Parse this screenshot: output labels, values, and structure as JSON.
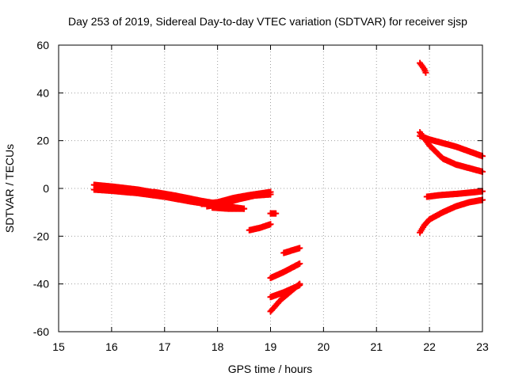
{
  "chart_data": {
    "type": "scatter",
    "title": "Day 253 of 2019, Sidereal Day-to-day VTEC variation (SDTVAR) for receiver sjsp",
    "xlabel": "GPS time / hours",
    "ylabel": "SDTVAR / TECUs",
    "xlim": [
      15,
      23
    ],
    "ylim": [
      -60,
      60
    ],
    "xticks": [
      15,
      16,
      17,
      18,
      19,
      20,
      21,
      22,
      23
    ],
    "yticks": [
      -60,
      -40,
      -20,
      0,
      20,
      40,
      60
    ],
    "grid": true,
    "legend": "none",
    "marker": "plus",
    "color": "#ff0000",
    "tracks": [
      [
        [
          15.67,
          1.5
        ],
        [
          16.0,
          0.8
        ],
        [
          16.5,
          -0.5
        ],
        [
          17.0,
          -2.5
        ],
        [
          17.5,
          -4.5
        ],
        [
          17.9,
          -6.0
        ]
      ],
      [
        [
          15.67,
          -0.5
        ],
        [
          16.0,
          -1.0
        ],
        [
          16.5,
          -2.0
        ],
        [
          17.0,
          -3.5
        ],
        [
          17.5,
          -5.5
        ],
        [
          18.0,
          -7.2
        ],
        [
          18.15,
          -7.8
        ]
      ],
      [
        [
          16.8,
          -1.5
        ],
        [
          17.2,
          -3.0
        ],
        [
          17.6,
          -4.8
        ],
        [
          18.0,
          -7.0
        ],
        [
          18.5,
          -8.5
        ]
      ],
      [
        [
          17.9,
          -8.0
        ],
        [
          18.2,
          -8.5
        ],
        [
          18.5,
          -8.5
        ]
      ],
      [
        [
          17.7,
          -6.5
        ],
        [
          18.0,
          -5.8
        ],
        [
          18.3,
          -4.0
        ],
        [
          18.6,
          -2.8
        ],
        [
          19.0,
          -1.5
        ]
      ],
      [
        [
          17.8,
          -7.5
        ],
        [
          18.1,
          -6.5
        ],
        [
          18.4,
          -4.5
        ],
        [
          18.7,
          -3.0
        ],
        [
          19.0,
          -2.5
        ]
      ],
      [
        [
          18.6,
          -17.5
        ],
        [
          18.8,
          -16.5
        ],
        [
          19.0,
          -15.0
        ]
      ],
      [
        [
          19.0,
          -10.5
        ],
        [
          19.1,
          -10.5
        ]
      ],
      [
        [
          19.0,
          -37.5
        ],
        [
          19.25,
          -35.0
        ],
        [
          19.55,
          -31.5
        ]
      ],
      [
        [
          19.0,
          -45.5
        ],
        [
          19.25,
          -43.5
        ],
        [
          19.55,
          -40.5
        ]
      ],
      [
        [
          19.0,
          -51.5
        ],
        [
          19.2,
          -46.5
        ],
        [
          19.55,
          -40.0
        ]
      ],
      [
        [
          19.25,
          -27.0
        ],
        [
          19.4,
          -26.0
        ],
        [
          19.55,
          -25.0
        ]
      ],
      [
        [
          21.82,
          52.5
        ],
        [
          21.9,
          50.0
        ],
        [
          21.93,
          48.5
        ]
      ],
      [
        [
          21.82,
          22.0
        ],
        [
          22.0,
          20.5
        ],
        [
          22.5,
          17.5
        ],
        [
          23.0,
          13.5
        ]
      ],
      [
        [
          21.82,
          23.5
        ],
        [
          22.0,
          18.0
        ],
        [
          22.25,
          12.5
        ],
        [
          22.5,
          10.0
        ],
        [
          23.0,
          7.0
        ]
      ],
      [
        [
          21.82,
          -18.5
        ],
        [
          21.9,
          -15.5
        ],
        [
          22.0,
          -13.0
        ],
        [
          22.25,
          -10.0
        ],
        [
          22.5,
          -7.5
        ],
        [
          22.75,
          -5.8
        ],
        [
          23.0,
          -4.8
        ]
      ],
      [
        [
          21.95,
          -3.5
        ],
        [
          22.2,
          -2.8
        ],
        [
          22.5,
          -2.3
        ],
        [
          22.75,
          -1.8
        ],
        [
          23.0,
          -1.2
        ]
      ]
    ]
  }
}
